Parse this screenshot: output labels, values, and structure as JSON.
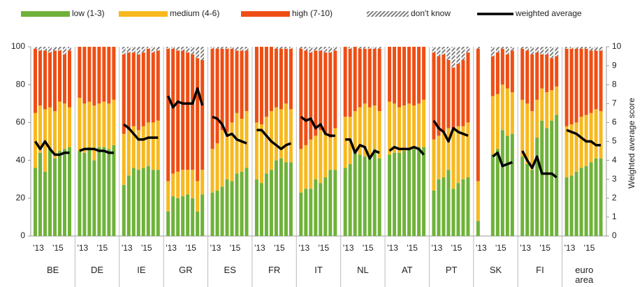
{
  "chart_data": {
    "type": "grouped-stacked-bar-line",
    "groups": [
      "BE",
      "DE",
      "IE",
      "GR",
      "ES",
      "FR",
      "IT",
      "NL",
      "AT",
      "PT",
      "SK",
      "FI",
      "euro area"
    ],
    "period_labels": [
      "'13",
      "'15"
    ],
    "y2_label": "Weighted average score",
    "ylim": [
      0,
      100
    ],
    "yticks": [
      0,
      20,
      40,
      60,
      80,
      100
    ],
    "y2lim": [
      0,
      10
    ],
    "y2ticks": [
      0,
      1,
      2,
      3,
      4,
      5,
      6,
      7,
      8,
      9,
      10
    ],
    "series": [
      {
        "name": "low (1-3)",
        "color": "#6fb23a",
        "values": [
          [
            36,
            44,
            34,
            46,
            41,
            45,
            46,
            47
          ],
          [
            45,
            44,
            47,
            40,
            47,
            47,
            46,
            48
          ],
          [
            27,
            32,
            36,
            35,
            36,
            37,
            35,
            35
          ],
          [
            13,
            21,
            20,
            21,
            22,
            20,
            13,
            22
          ],
          [
            23,
            24,
            26,
            30,
            29,
            33,
            34,
            36
          ],
          [
            30,
            28,
            33,
            35,
            40,
            41,
            39,
            39
          ],
          [
            23,
            25,
            25,
            30,
            28,
            31,
            35,
            35
          ],
          [
            36,
            38,
            45,
            43,
            42,
            41,
            46,
            41
          ],
          [
            43,
            44,
            44,
            45,
            46,
            46,
            47,
            47
          ],
          [
            24,
            30,
            31,
            35,
            25,
            28,
            30,
            31
          ],
          [
            8,
            null,
            null,
            43,
            46,
            56,
            53,
            54
          ],
          [
            42,
            38,
            35,
            52,
            61,
            57,
            61,
            64
          ],
          [
            31,
            32,
            34,
            36,
            37,
            39,
            41,
            41
          ]
        ]
      },
      {
        "name": "medium (4-6)",
        "color": "#f7b91e",
        "values": [
          [
            29,
            25,
            33,
            22,
            25,
            26,
            24,
            21
          ],
          [
            28,
            26,
            24,
            29,
            23,
            24,
            24,
            24
          ],
          [
            27,
            24,
            22,
            21,
            22,
            23,
            25,
            26
          ],
          [
            16,
            12,
            14,
            14,
            13,
            15,
            16,
            13
          ],
          [
            23,
            25,
            30,
            25,
            31,
            32,
            28,
            30
          ],
          [
            30,
            31,
            30,
            31,
            28,
            26,
            31,
            28
          ],
          [
            23,
            23,
            26,
            23,
            28,
            23,
            17,
            22
          ],
          [
            27,
            25,
            21,
            25,
            28,
            27,
            23,
            25
          ],
          [
            28,
            26,
            24,
            24,
            24,
            23,
            23,
            25
          ],
          [
            27,
            23,
            24,
            22,
            32,
            30,
            28,
            29
          ],
          [
            21,
            null,
            null,
            31,
            29,
            24,
            25,
            22
          ],
          [
            30,
            32,
            31,
            20,
            17,
            19,
            16,
            15
          ],
          [
            27,
            27,
            26,
            27,
            27,
            26,
            26,
            25
          ]
        ]
      },
      {
        "name": "high (7-10)",
        "color": "#ef4e14",
        "values": [
          [
            34,
            29,
            31,
            29,
            32,
            27,
            26,
            30
          ],
          [
            27,
            30,
            29,
            31,
            30,
            29,
            30,
            28
          ],
          [
            42,
            41,
            39,
            40,
            39,
            39,
            37,
            37
          ],
          [
            70,
            66,
            64,
            63,
            62,
            61,
            65,
            58
          ],
          [
            53,
            50,
            43,
            44,
            39,
            33,
            36,
            32
          ],
          [
            40,
            41,
            37,
            34,
            31,
            32,
            29,
            32
          ],
          [
            53,
            50,
            46,
            45,
            42,
            43,
            45,
            41
          ],
          [
            37,
            36,
            34,
            31,
            29,
            31,
            30,
            33
          ],
          [
            29,
            30,
            32,
            31,
            30,
            31,
            30,
            28
          ],
          [
            46,
            42,
            41,
            36,
            32,
            33,
            35,
            37
          ],
          [
            70,
            null,
            null,
            21,
            22,
            19,
            18,
            22
          ],
          [
            27,
            28,
            30,
            25,
            18,
            20,
            17,
            16
          ],
          [
            41,
            40,
            39,
            36,
            35,
            33,
            31,
            32
          ]
        ]
      },
      {
        "name": "don't know",
        "color": "#808080",
        "values": [
          [
            1,
            2,
            2,
            3,
            2,
            2,
            4,
            2
          ],
          [
            0,
            0,
            0,
            0,
            0,
            0,
            0,
            0
          ],
          [
            4,
            3,
            3,
            4,
            3,
            1,
            3,
            2
          ],
          [
            1,
            1,
            2,
            2,
            3,
            4,
            6,
            7
          ],
          [
            1,
            1,
            1,
            1,
            1,
            2,
            2,
            2
          ],
          [
            0,
            0,
            0,
            0,
            1,
            1,
            1,
            1
          ],
          [
            1,
            2,
            3,
            2,
            2,
            3,
            3,
            2
          ],
          [
            0,
            1,
            0,
            1,
            1,
            1,
            1,
            1
          ],
          [
            0,
            0,
            0,
            0,
            0,
            0,
            0,
            0
          ],
          [
            3,
            5,
            4,
            7,
            11,
            9,
            7,
            3
          ],
          [
            1,
            null,
            null,
            5,
            3,
            1,
            4,
            2
          ],
          [
            1,
            2,
            4,
            3,
            4,
            4,
            6,
            5
          ],
          [
            1,
            1,
            1,
            1,
            1,
            2,
            2,
            2
          ]
        ]
      },
      {
        "name": "weighted average",
        "color": "#000000",
        "axis": "y2",
        "values": [
          [
            5.0,
            4.6,
            5.0,
            4.6,
            4.3,
            4.3,
            4.4,
            4.4
          ],
          [
            4.5,
            4.6,
            4.6,
            4.6,
            4.5,
            4.5,
            4.4,
            4.4
          ],
          [
            5.9,
            5.7,
            5.4,
            5.1,
            5.1,
            5.2,
            5.2,
            5.2
          ],
          [
            7.4,
            6.8,
            7.1,
            7.0,
            7.0,
            7.0,
            7.8,
            6.9
          ],
          [
            6.3,
            6.2,
            5.9,
            5.3,
            5.4,
            5.1,
            5.0,
            4.9
          ],
          [
            5.6,
            5.6,
            5.3,
            5.0,
            4.8,
            4.6,
            4.8,
            4.9
          ],
          [
            6.3,
            6.1,
            6.2,
            5.7,
            5.9,
            5.4,
            5.3,
            5.3
          ],
          [
            5.1,
            5.1,
            4.4,
            4.8,
            4.7,
            4.1,
            4.5,
            4.4
          ],
          [
            4.5,
            4.7,
            4.6,
            4.6,
            4.6,
            4.7,
            4.6,
            4.3
          ],
          [
            6.1,
            5.7,
            5.5,
            5.0,
            5.7,
            5.5,
            5.4,
            5.3
          ],
          [
            null,
            null,
            null,
            4.2,
            4.4,
            3.7,
            3.8,
            3.9
          ],
          [
            4.5,
            4.0,
            3.6,
            4.2,
            3.3,
            3.3,
            3.3,
            3.1
          ],
          [
            5.6,
            5.5,
            5.4,
            5.2,
            5.0,
            5.0,
            4.8,
            4.8
          ]
        ]
      }
    ]
  }
}
